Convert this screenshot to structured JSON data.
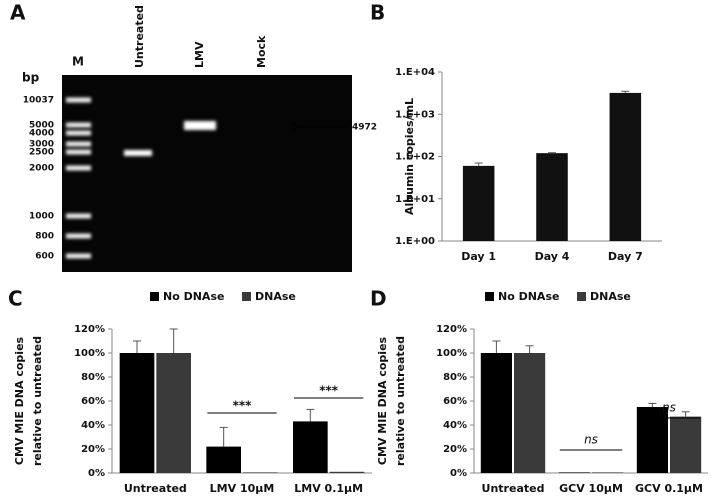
{
  "gel": {
    "panel": "A",
    "lanes": [
      "M",
      "Untreated",
      "LMV",
      "Mock"
    ],
    "unit": "bp",
    "ladder": [
      "10037",
      "5000",
      "4000",
      "3000",
      "2500",
      "2000",
      "1000",
      "800",
      "600"
    ],
    "arrow_label": "4972"
  },
  "chart_data": [
    {
      "type": "bar",
      "panel": "B",
      "ylabel": "Albumin copies/mL",
      "log_scale": true,
      "categories": [
        "Day 1",
        "Day 4",
        "Day 7"
      ],
      "values": [
        60,
        120,
        3200
      ],
      "errors": [
        10,
        3,
        300
      ],
      "color": "#111111",
      "ylim": [
        1,
        10000
      ],
      "yticks": [
        {
          "value": 1,
          "label": "1.E+00"
        },
        {
          "value": 10,
          "label": "1.E+01"
        },
        {
          "value": 100,
          "label": "1.E+02"
        },
        {
          "value": 1000,
          "label": "1.E+03"
        },
        {
          "value": 10000,
          "label": "1.E+04"
        }
      ]
    },
    {
      "type": "grouped_bar",
      "panel": "C",
      "ylabel": [
        "CMV MIE DNA copies",
        "relative to untreated"
      ],
      "categories": [
        "Untreated",
        "LMV 10μM",
        "LMV 0.1μM"
      ],
      "series": [
        {
          "name": "No DNAse",
          "color": "#000000",
          "values": [
            100,
            22,
            43
          ],
          "errors": [
            10,
            16,
            10
          ]
        },
        {
          "name": "DNAse",
          "color": "#3a3a3a",
          "values": [
            100,
            0.5,
            1
          ],
          "errors": [
            20,
            0,
            0
          ]
        }
      ],
      "annotations": [
        "***",
        "***"
      ],
      "ylim": [
        0,
        120
      ],
      "yticks": [
        {
          "value": 0,
          "label": "0%"
        },
        {
          "value": 20,
          "label": "20%"
        },
        {
          "value": 40,
          "label": "40%"
        },
        {
          "value": 60,
          "label": "60%"
        },
        {
          "value": 80,
          "label": "80%"
        },
        {
          "value": 100,
          "label": "100%"
        },
        {
          "value": 120,
          "label": "120%"
        }
      ]
    },
    {
      "type": "grouped_bar",
      "panel": "D",
      "ylabel": [
        "CMV MIE DNA copies",
        "relative to untreated"
      ],
      "categories": [
        "Untreated",
        "GCV 10μM",
        "GCV 0.1μM"
      ],
      "series": [
        {
          "name": "No DNAse",
          "color": "#000000",
          "values": [
            100,
            0.5,
            55
          ],
          "errors": [
            10,
            0,
            3
          ]
        },
        {
          "name": "DNAse",
          "color": "#3a3a3a",
          "values": [
            100,
            0.5,
            47
          ],
          "errors": [
            6,
            0,
            4
          ]
        }
      ],
      "annotations": [
        "ns",
        "ns"
      ],
      "ylim": [
        0,
        120
      ],
      "yticks": [
        {
          "value": 0,
          "label": "0%"
        },
        {
          "value": 20,
          "label": "20%"
        },
        {
          "value": 40,
          "label": "40%"
        },
        {
          "value": 60,
          "label": "60%"
        },
        {
          "value": 80,
          "label": "80%"
        },
        {
          "value": 100,
          "label": "100%"
        },
        {
          "value": 120,
          "label": "120%"
        }
      ]
    }
  ]
}
